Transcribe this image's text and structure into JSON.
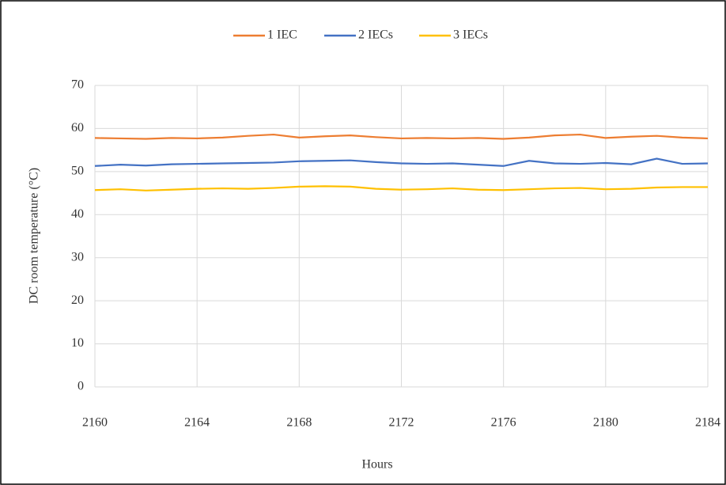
{
  "chart_data": {
    "type": "line",
    "x_label": "Hours",
    "y_label": "DC room temperature (°C)",
    "x": [
      2160,
      2161,
      2162,
      2163,
      2164,
      2165,
      2166,
      2167,
      2168,
      2169,
      2170,
      2171,
      2172,
      2173,
      2174,
      2175,
      2176,
      2177,
      2178,
      2179,
      2180,
      2181,
      2182,
      2183,
      2184
    ],
    "series": [
      {
        "name": "1 IEC",
        "color": "#ed7d31",
        "values": [
          57.8,
          57.7,
          57.6,
          57.8,
          57.7,
          57.9,
          58.3,
          58.6,
          57.9,
          58.2,
          58.4,
          58.0,
          57.7,
          57.8,
          57.7,
          57.8,
          57.6,
          57.9,
          58.4,
          58.6,
          57.8,
          58.1,
          58.3,
          57.9,
          57.7
        ]
      },
      {
        "name": "2 IECs",
        "color": "#4472c4",
        "values": [
          51.3,
          51.6,
          51.4,
          51.7,
          51.8,
          51.9,
          52.0,
          52.1,
          52.4,
          52.5,
          52.6,
          52.2,
          51.9,
          51.8,
          51.9,
          51.6,
          51.3,
          52.5,
          51.9,
          51.8,
          52.0,
          51.7,
          53.0,
          51.8,
          51.9
        ]
      },
      {
        "name": "3 IECs",
        "color": "#ffc000",
        "values": [
          45.7,
          45.9,
          45.6,
          45.8,
          46.0,
          46.1,
          46.0,
          46.2,
          46.5,
          46.6,
          46.5,
          46.0,
          45.8,
          45.9,
          46.1,
          45.8,
          45.7,
          45.9,
          46.1,
          46.2,
          45.9,
          46.0,
          46.3,
          46.4,
          46.4
        ]
      }
    ],
    "xlim": [
      2160,
      2184
    ],
    "xticks": [
      2160,
      2164,
      2168,
      2172,
      2176,
      2180,
      2184
    ],
    "ylim": [
      0,
      70
    ],
    "yticks": [
      0,
      10,
      20,
      30,
      40,
      50,
      60,
      70
    ],
    "grid": true,
    "legend": "top"
  }
}
